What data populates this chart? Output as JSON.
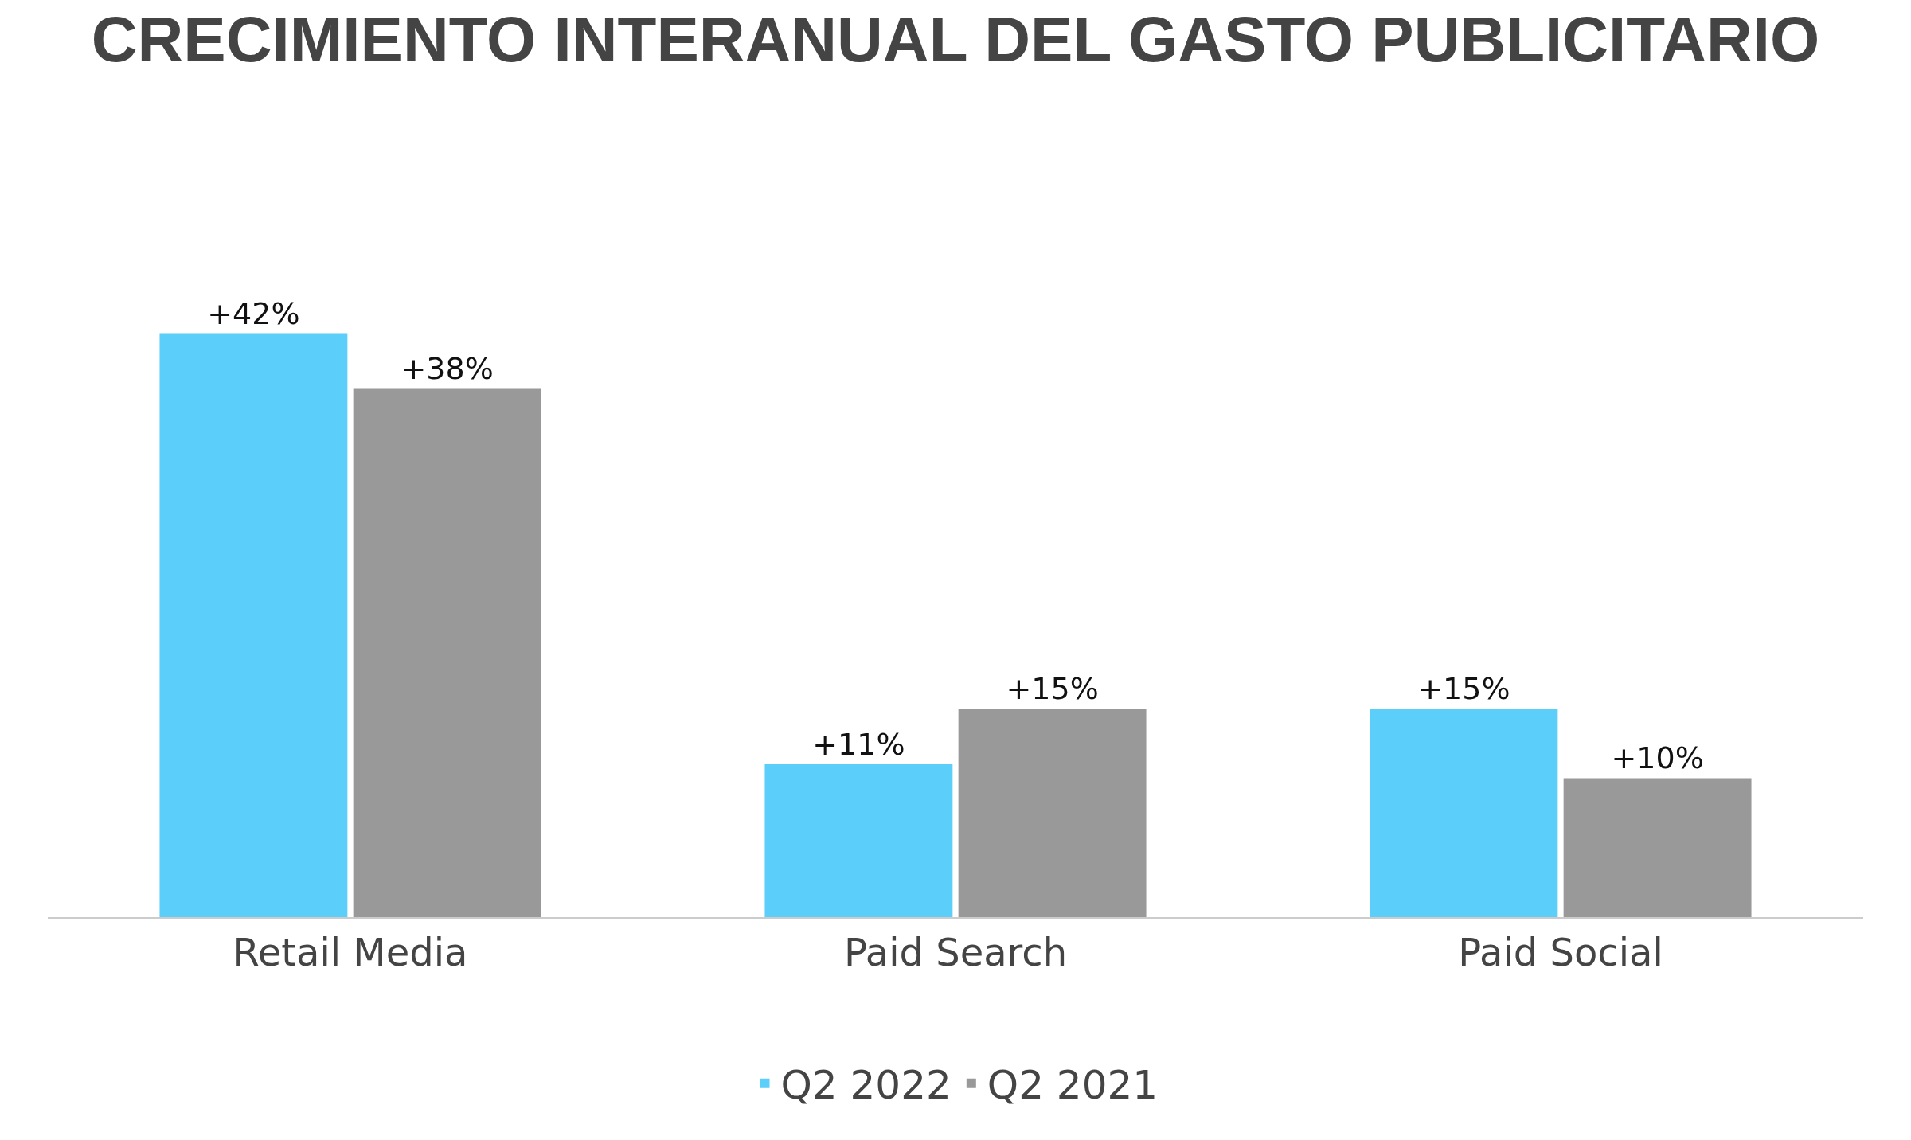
{
  "chart_data": {
    "type": "bar",
    "title": "CRECIMIENTO INTERANUAL DEL GASTO PUBLICITARIO",
    "categories": [
      "Retail Media",
      "Paid Search",
      "Paid Social"
    ],
    "series": [
      {
        "name": "Q2 2022",
        "color": "#5bcefa",
        "values": [
          42,
          11,
          15
        ],
        "value_labels": [
          "+42%",
          "+11%",
          "+15%"
        ]
      },
      {
        "name": "Q2 2021",
        "color": "#999999",
        "values": [
          38,
          15,
          10
        ],
        "value_labels": [
          "+38%",
          "+15%",
          "+10%"
        ]
      }
    ],
    "legend": "bottom",
    "grid": false,
    "tick_labels": "x"
  }
}
